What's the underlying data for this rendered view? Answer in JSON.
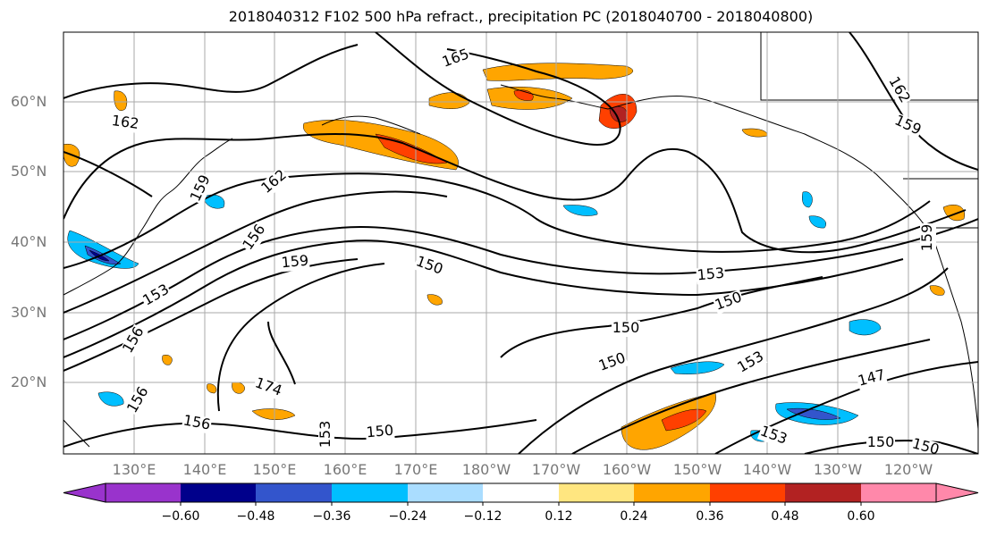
{
  "title": "2018040312 F102 500 hPa refract., precipitation PC (2018040700 - 2018040800)",
  "lat_labels": [
    "60°N",
    "50°N",
    "40°N",
    "30°N",
    "20°N"
  ],
  "lon_labels": [
    "130°E",
    "140°E",
    "150°E",
    "160°E",
    "170°E",
    "180°W",
    "170°W",
    "160°W",
    "150°W",
    "140°W",
    "130°W",
    "120°W"
  ],
  "contour_labels": [
    "165",
    "162",
    "162",
    "159",
    "162",
    "159",
    "156",
    "159",
    "150",
    "153",
    "153",
    "150",
    "150",
    "156",
    "150",
    "156",
    "153",
    "147",
    "156",
    "153",
    "153",
    "150",
    "150",
    "150",
    "174",
    "159"
  ],
  "colorbar": {
    "ticks": [
      "−0.60",
      "−0.48",
      "−0.36",
      "−0.24",
      "−0.12",
      "0.12",
      "0.24",
      "0.36",
      "0.48",
      "0.60"
    ],
    "colors": [
      "#9933cc",
      "#00008b",
      "#3355cc",
      "#00bfff",
      "#aaddff",
      "#ffffff",
      "#ffe680",
      "#ffa500",
      "#ff4000",
      "#b22222",
      "#ff88aa"
    ]
  }
}
